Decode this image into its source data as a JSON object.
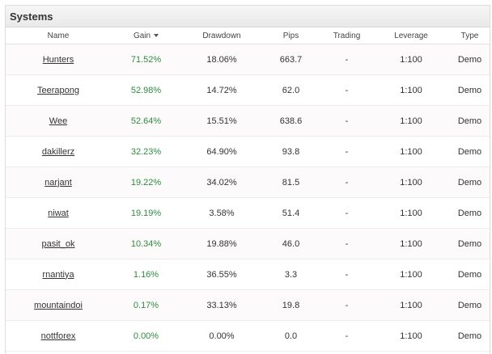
{
  "panel": {
    "title": "Systems"
  },
  "columns": {
    "name": "Name",
    "gain": "Gain",
    "drawdown": "Drawdown",
    "pips": "Pips",
    "trading": "Trading",
    "leverage": "Leverage",
    "type": "Type"
  },
  "sort": {
    "column": "gain",
    "direction": "desc"
  },
  "colors": {
    "gain_positive": "#2e8b3d",
    "header_bg": "#ececec"
  },
  "rows": [
    {
      "name": "Hunters",
      "gain": "71.52%",
      "drawdown": "18.06%",
      "pips": "663.7",
      "trading": "-",
      "leverage": "1:100",
      "type": "Demo"
    },
    {
      "name": "Teerapong",
      "gain": "52.98%",
      "drawdown": "14.72%",
      "pips": "62.0",
      "trading": "-",
      "leverage": "1:100",
      "type": "Demo"
    },
    {
      "name": "Wee",
      "gain": "52.64%",
      "drawdown": "15.51%",
      "pips": "638.6",
      "trading": "-",
      "leverage": "1:100",
      "type": "Demo"
    },
    {
      "name": "dakillerz",
      "gain": "32.23%",
      "drawdown": "64.90%",
      "pips": "93.8",
      "trading": "-",
      "leverage": "1:100",
      "type": "Demo"
    },
    {
      "name": "narjant",
      "gain": "19.22%",
      "drawdown": "34.02%",
      "pips": "81.5",
      "trading": "-",
      "leverage": "1:100",
      "type": "Demo"
    },
    {
      "name": "niwat",
      "gain": "19.19%",
      "drawdown": "3.58%",
      "pips": "51.4",
      "trading": "-",
      "leverage": "1:100",
      "type": "Demo"
    },
    {
      "name": "pasit_ok",
      "gain": "10.34%",
      "drawdown": "19.88%",
      "pips": "46.0",
      "trading": "-",
      "leverage": "1:100",
      "type": "Demo"
    },
    {
      "name": "rnantiya",
      "gain": "1.16%",
      "drawdown": "36.55%",
      "pips": "3.3",
      "trading": "-",
      "leverage": "1:100",
      "type": "Demo"
    },
    {
      "name": "mountaindoi",
      "gain": "0.17%",
      "drawdown": "33.13%",
      "pips": "19.8",
      "trading": "-",
      "leverage": "1:100",
      "type": "Demo"
    },
    {
      "name": "nottforex",
      "gain": "0.00%",
      "drawdown": "0.00%",
      "pips": "0.0",
      "trading": "-",
      "leverage": "1:100",
      "type": "Demo"
    }
  ]
}
